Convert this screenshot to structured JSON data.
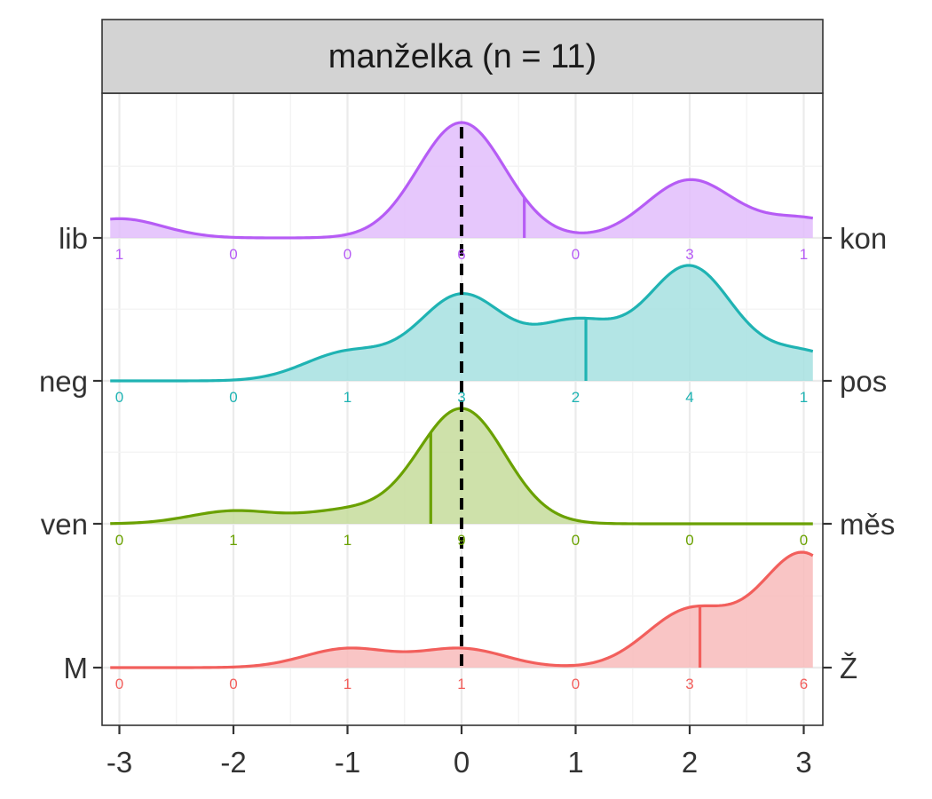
{
  "chart_data": {
    "type": "ridgeline",
    "panel_title": "manželka (n = 11)",
    "xlim": [
      -3,
      3
    ],
    "x_ticks": [
      "-3",
      "-2",
      "-1",
      "0",
      "1",
      "2",
      "3"
    ],
    "reference_line_x": 0,
    "grid": true,
    "score_points": [
      -3,
      -2,
      -1,
      0,
      1,
      2,
      3
    ],
    "series": [
      {
        "left_label": "M",
        "right_label": "Ž",
        "color": "#f25f5c",
        "fill": "#f8bbbb",
        "counts": [
          0,
          0,
          1,
          1,
          0,
          3,
          6
        ],
        "mean": 2.09
      },
      {
        "left_label": "ven",
        "right_label": "měs",
        "color": "#6aa100",
        "fill": "#c5dc9b",
        "counts": [
          0,
          1,
          1,
          9,
          0,
          0,
          0
        ],
        "mean": -0.27
      },
      {
        "left_label": "neg",
        "right_label": "pos",
        "color": "#1fb3b3",
        "fill": "#a6e0e0",
        "counts": [
          0,
          0,
          1,
          3,
          2,
          4,
          1
        ],
        "mean": 1.09
      },
      {
        "left_label": "lib",
        "right_label": "kon",
        "color": "#b65cf5",
        "fill": "#e2bdfc",
        "counts": [
          1,
          0,
          0,
          6,
          0,
          3,
          1
        ],
        "mean": 0.55
      }
    ]
  }
}
